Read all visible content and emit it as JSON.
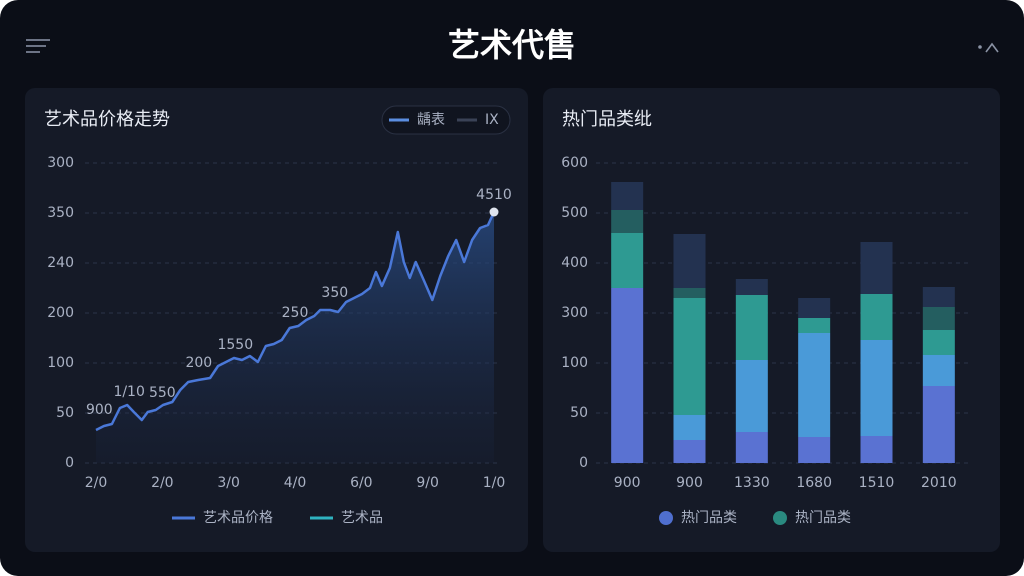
{
  "title": "艺术代售",
  "chart_data": [
    {
      "type": "line",
      "title": "艺术品价格走势",
      "toggle": [
        {
          "name": "龋表",
          "color": "#5b8ee0"
        },
        {
          "name": "IX",
          "color": "#3a4256"
        }
      ],
      "xlim": [
        0,
        6
      ],
      "xticks": [
        {
          "value": 0,
          "label": "2/0"
        },
        {
          "value": 1,
          "label": "2/0"
        },
        {
          "value": 2,
          "label": "3/0"
        },
        {
          "value": 3,
          "label": "4/0"
        },
        {
          "value": 4,
          "label": "6/0"
        },
        {
          "value": 5,
          "label": "9/0"
        },
        {
          "value": 6,
          "label": "1/0"
        }
      ],
      "ylim": [
        0,
        300
      ],
      "yticks": [
        0,
        50,
        100,
        {
          "value": 150,
          "label": "200"
        },
        {
          "value": 200,
          "label": "240"
        },
        {
          "value": 250,
          "label": "350"
        },
        {
          "value": 300,
          "label": "300"
        }
      ],
      "grid": true,
      "legend": [
        {
          "name": "艺术品价格",
          "color": "#4a78d8"
        },
        {
          "name": "艺术品",
          "color": "#2fb3c0"
        }
      ],
      "series": [
        {
          "color": "#4a78d8",
          "x": [
            0,
            0.12,
            0.24,
            0.36,
            0.47,
            0.57,
            0.69,
            0.78,
            0.9,
            1.01,
            1.15,
            1.27,
            1.39,
            1.54,
            1.72,
            1.84,
            1.96,
            2.08,
            2.2,
            2.32,
            2.44,
            2.56,
            2.68,
            2.8,
            2.92,
            3.05,
            3.17,
            3.29,
            3.38,
            3.53,
            3.65,
            3.77,
            3.89,
            4.01,
            4.13,
            4.22,
            4.31,
            4.43,
            4.55,
            4.64,
            4.73,
            4.82,
            4.94,
            5.07,
            5.19,
            5.31,
            5.43,
            5.55,
            5.67,
            5.79,
            5.91,
            6
          ],
          "values": [
            33,
            37,
            39,
            55,
            58,
            51,
            43,
            51,
            53,
            58,
            61,
            73,
            81,
            83,
            85,
            97,
            101,
            105,
            103,
            107,
            101,
            117,
            119,
            123,
            135,
            137,
            143,
            147,
            153,
            153,
            151,
            161,
            165,
            169,
            175,
            191,
            177,
            195,
            231,
            201,
            185,
            201,
            183,
            163,
            187,
            207,
            223,
            201,
            223,
            235,
            238,
            251
          ]
        }
      ],
      "annotations": [
        {
          "text": "900",
          "x": 0.05,
          "y": 53
        },
        {
          "text": "1/10",
          "x": 0.5,
          "y": 71
        },
        {
          "text": "550",
          "x": 1.0,
          "y": 70
        },
        {
          "text": "200",
          "x": 1.55,
          "y": 100
        },
        {
          "text": "1550",
          "x": 2.1,
          "y": 118
        },
        {
          "text": "250",
          "x": 3.0,
          "y": 150
        },
        {
          "text": "350",
          "x": 3.6,
          "y": 170
        },
        {
          "text": "4510",
          "x": 6.0,
          "y": 268
        }
      ]
    },
    {
      "type": "bar",
      "stacked": true,
      "title": "热门品类纰",
      "categories": [
        "900",
        "900",
        "1330",
        "1680",
        "1510",
        "2010"
      ],
      "ylim": [
        0,
        300
      ],
      "yticks": [
        0,
        50,
        100,
        {
          "value": 150,
          "label": "300"
        },
        {
          "value": 200,
          "label": "400"
        },
        {
          "value": 250,
          "label": "500"
        },
        {
          "value": 300,
          "label": "600"
        }
      ],
      "grid": true,
      "legend": [
        {
          "name": "热门品类",
          "color": "#4f6fcf"
        },
        {
          "name": "热门品类",
          "color": "#2a8a80"
        }
      ],
      "series": [
        {
          "color": "#5a72d2",
          "values": [
            175,
            23,
            31,
            26,
            27,
            77
          ]
        },
        {
          "color": "#4a9ad8",
          "values": [
            null,
            25,
            72,
            104,
            96,
            31
          ]
        },
        {
          "color": "#2e9a92",
          "values": [
            55,
            117,
            65,
            15,
            46,
            25
          ]
        },
        {
          "color": "#245e60",
          "values": [
            23,
            10,
            null,
            null,
            null,
            23
          ]
        },
        {
          "color": "#233250",
          "values": [
            28,
            54,
            16,
            20,
            52,
            20
          ]
        }
      ]
    }
  ]
}
